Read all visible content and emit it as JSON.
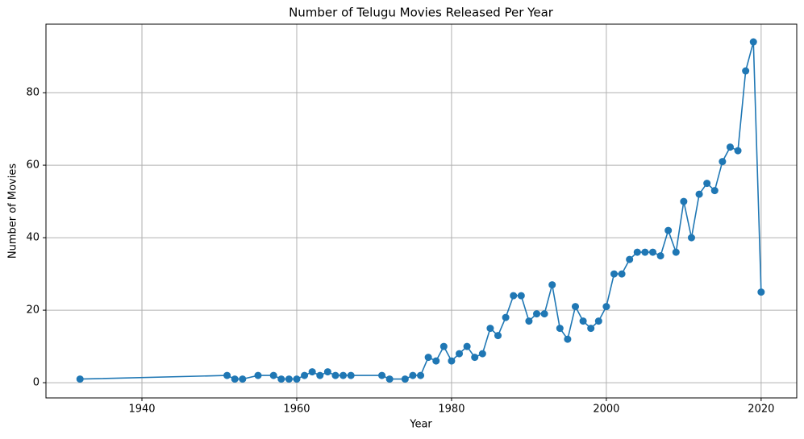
{
  "chart_data": {
    "type": "line",
    "title": "Number of Telugu Movies Released Per Year",
    "x_label": "Year",
    "y_label": "Number of Movies",
    "x": [
      1932,
      1951,
      1952,
      1953,
      1955,
      1957,
      1958,
      1959,
      1960,
      1961,
      1962,
      1963,
      1964,
      1965,
      1966,
      1967,
      1971,
      1972,
      1974,
      1975,
      1976,
      1977,
      1978,
      1979,
      1980,
      1981,
      1982,
      1983,
      1984,
      1985,
      1986,
      1987,
      1988,
      1989,
      1990,
      1991,
      1992,
      1993,
      1994,
      1995,
      1996,
      1997,
      1998,
      1999,
      2000,
      2001,
      2002,
      2003,
      2004,
      2005,
      2006,
      2007,
      2008,
      2009,
      2010,
      2011,
      2012,
      2013,
      2014,
      2015,
      2016,
      2017,
      2018,
      2019,
      2020
    ],
    "series": [
      {
        "color": "#1f77b4",
        "values": [
          1,
          2,
          1,
          1,
          2,
          2,
          1,
          1,
          1,
          2,
          3,
          2,
          3,
          2,
          2,
          2,
          2,
          1,
          1,
          2,
          2,
          7,
          6,
          10,
          6,
          8,
          10,
          7,
          8,
          15,
          13,
          18,
          24,
          24,
          17,
          19,
          19,
          27,
          15,
          12,
          21,
          17,
          15,
          17,
          21,
          30,
          30,
          34,
          36,
          36,
          36,
          35,
          42,
          36,
          50,
          40,
          52,
          55,
          53,
          61,
          65,
          64,
          86,
          94,
          25
        ]
      }
    ],
    "xlim": [
      1927.6,
      2024.6
    ],
    "xticks": [
      1940,
      1960,
      1980,
      2000,
      2020
    ],
    "ylim": [
      -4.2,
      98.9
    ],
    "yticks": [
      0,
      20,
      40,
      60,
      80
    ],
    "grid": true
  }
}
